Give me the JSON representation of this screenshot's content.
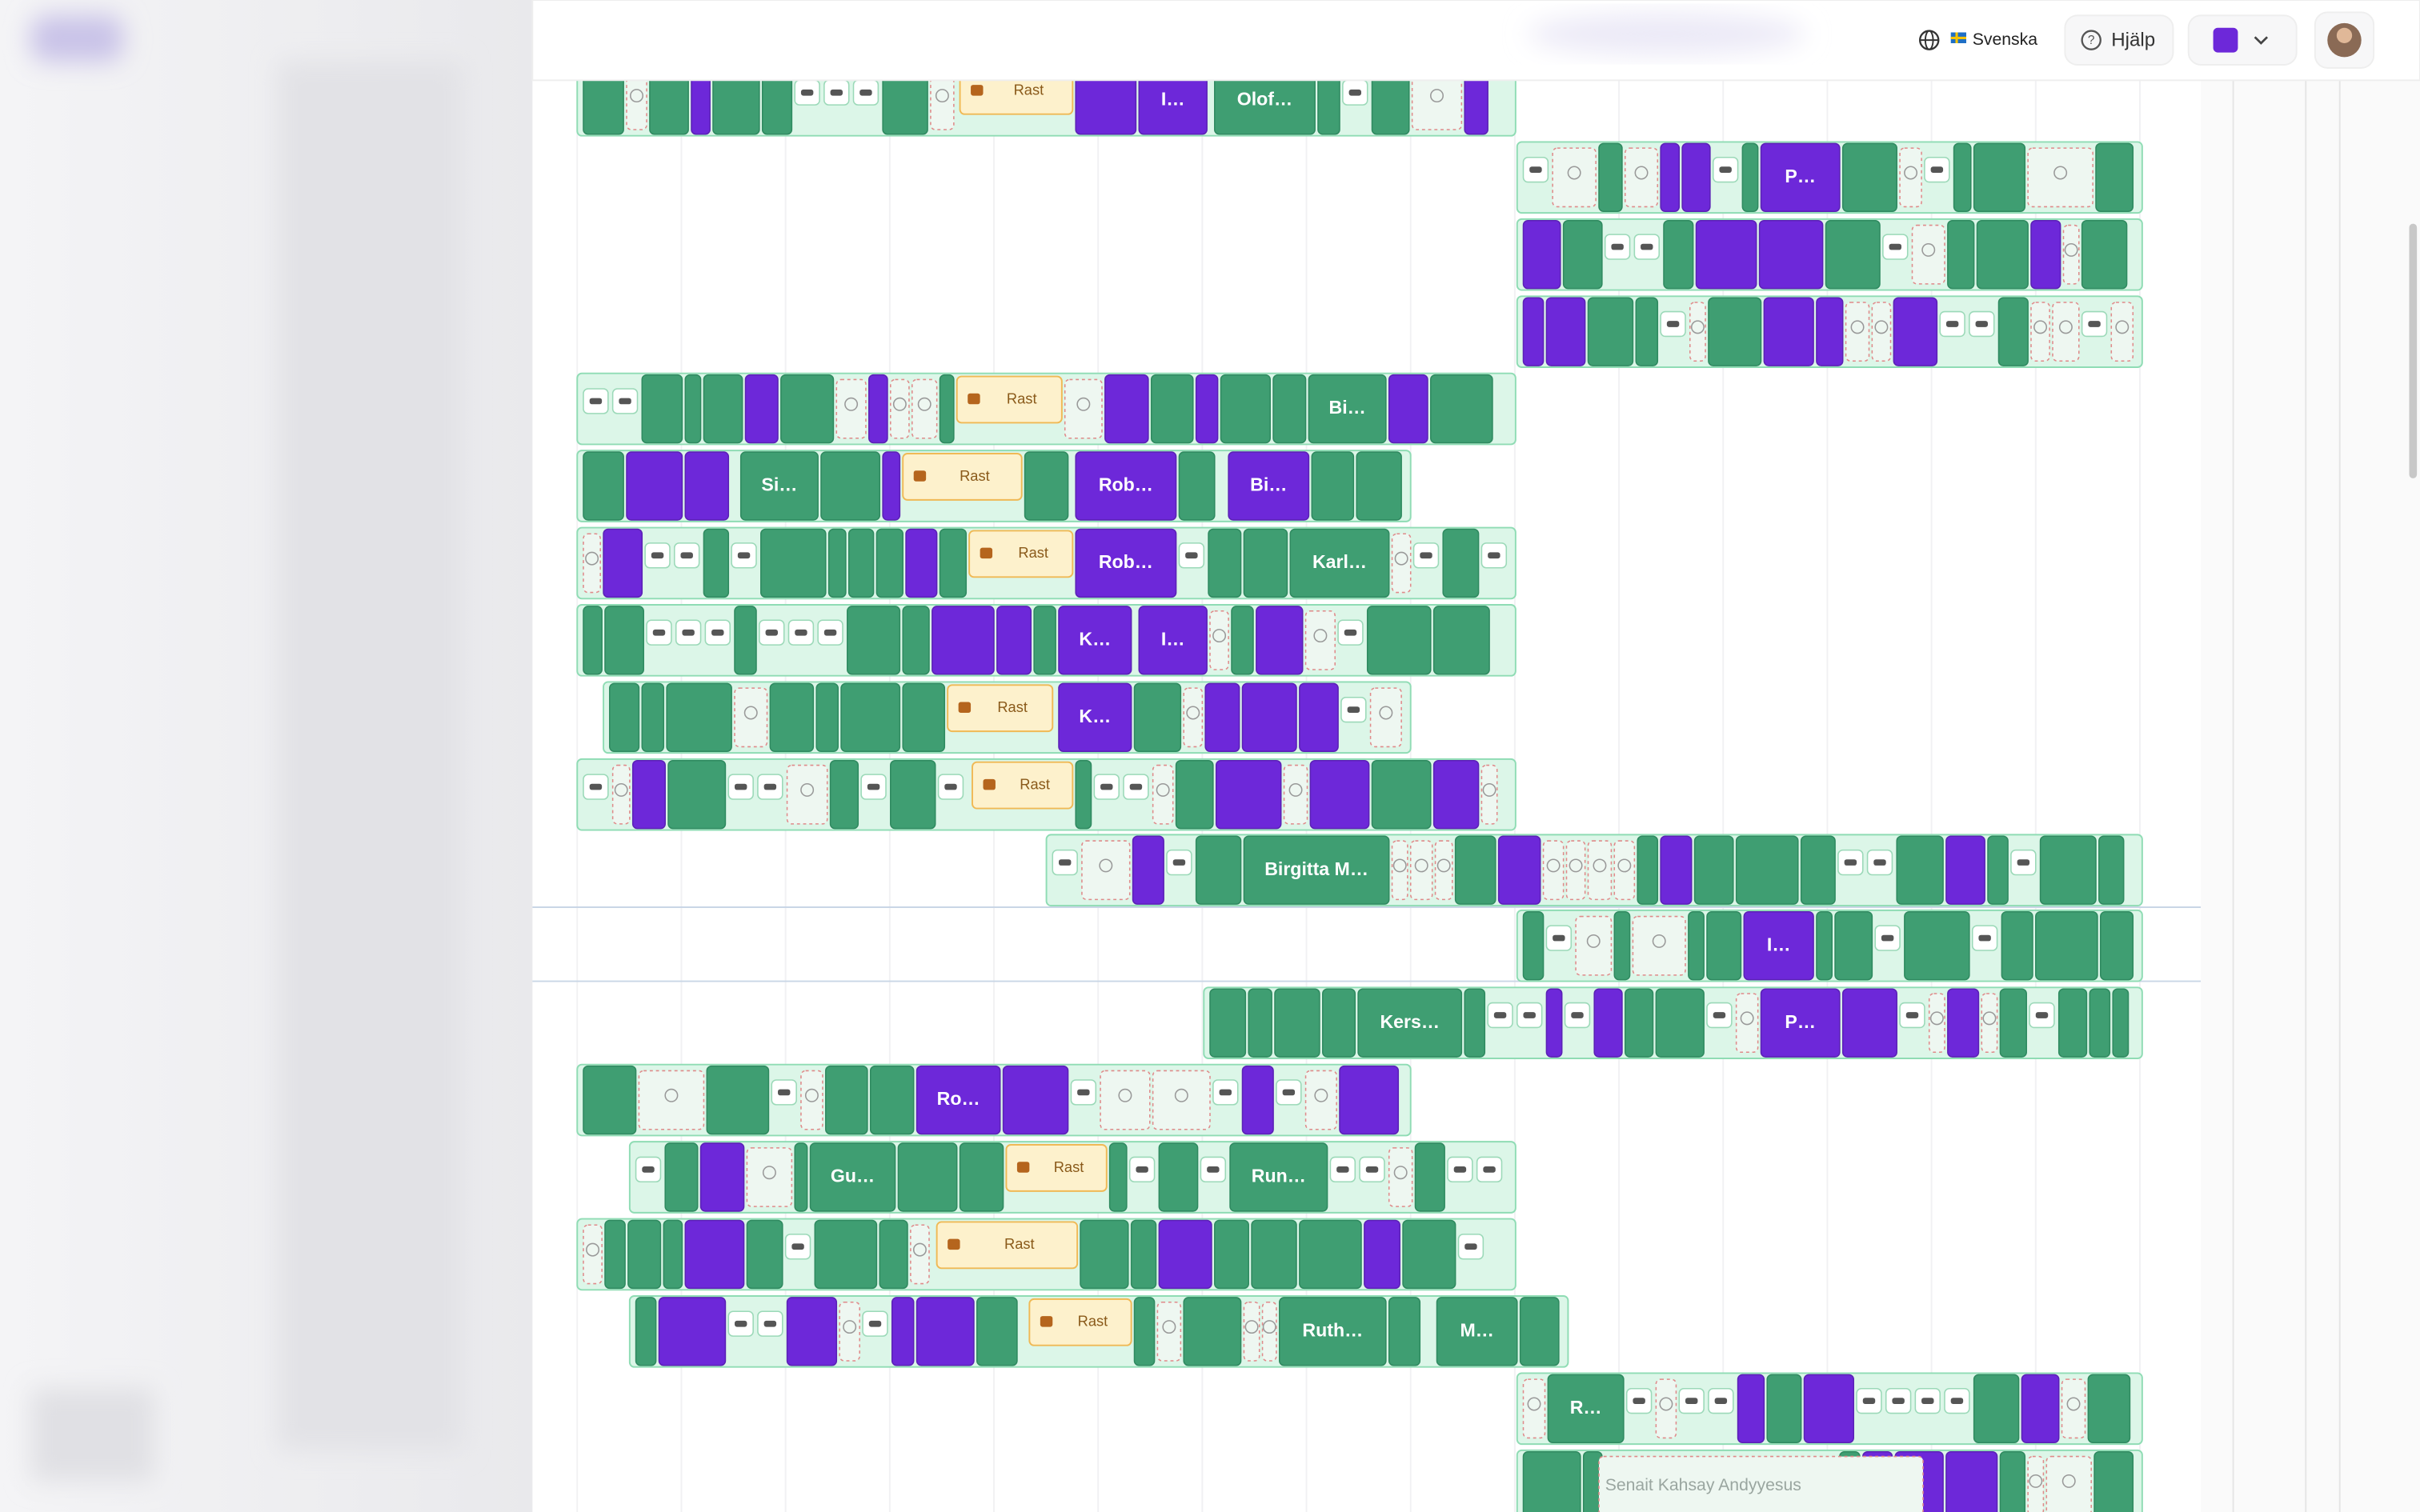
{
  "header": {
    "language": "Svenska",
    "help": "Hjälp"
  },
  "rows": [
    {
      "labels": [
        "Rast",
        "I…",
        "Olof…"
      ]
    },
    {
      "labels": [
        "P…"
      ]
    },
    {
      "labels": []
    },
    {
      "labels": []
    },
    {
      "labels": [
        "Rast",
        "Bi…"
      ]
    },
    {
      "labels": [
        "Si…",
        "Rast",
        "Rob…",
        "Bi…"
      ]
    },
    {
      "labels": [
        "Rast",
        "Rob…",
        "Karl…"
      ]
    },
    {
      "labels": [
        "K…",
        "I…"
      ]
    },
    {
      "labels": [
        "Rast",
        "K…"
      ]
    },
    {
      "labels": [
        "Rast"
      ]
    },
    {
      "labels": [
        "Birgitta M…"
      ]
    },
    {
      "labels": [
        "I…"
      ]
    },
    {
      "labels": [
        "Kers…",
        "P…"
      ]
    },
    {
      "labels": [
        "Ro…"
      ]
    },
    {
      "labels": [
        "Gu…",
        "Rast",
        "Run…"
      ]
    },
    {
      "labels": [
        "Rast"
      ]
    },
    {
      "labels": [
        "Rast",
        "Ruth…",
        "M…"
      ]
    },
    {
      "labels": [
        "R…"
      ]
    },
    {
      "labels": [
        "Senait Kahsay Andyyesus"
      ]
    }
  ]
}
